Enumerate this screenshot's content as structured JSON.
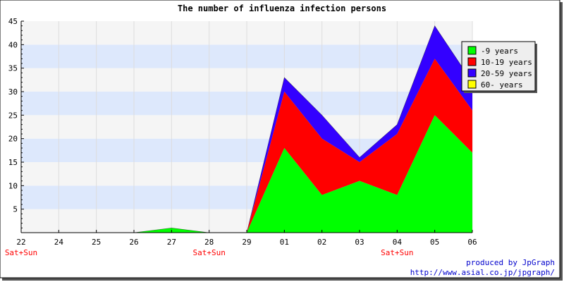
{
  "chart_data": {
    "type": "area",
    "stacked": true,
    "title": "The number of influenza infection persons",
    "x_labels": [
      "22",
      "24",
      "25",
      "26",
      "27",
      "28",
      "29",
      "01",
      "02",
      "03",
      "04",
      "05",
      "06"
    ],
    "weekend_labels": [
      "Sat+Sun",
      "",
      "",
      "",
      "",
      "Sat+Sun",
      "",
      "",
      "",
      "",
      "Sat+Sun",
      "",
      ""
    ],
    "ylim": [
      0,
      45
    ],
    "y_ticks": [
      5,
      10,
      15,
      20,
      25,
      30,
      35,
      40,
      45
    ],
    "series": [
      {
        "name": "-9 years",
        "color": "#00ff00",
        "values": [
          0,
          0,
          0,
          0,
          1,
          0,
          0,
          18,
          8,
          11,
          8,
          25,
          17
        ]
      },
      {
        "name": "10-19 years",
        "color": "#ff0000",
        "values": [
          0,
          0,
          0,
          0,
          0,
          0,
          0,
          12,
          12,
          4,
          13,
          12,
          9
        ]
      },
      {
        "name": "20-59 years",
        "color": "#3300ff",
        "values": [
          0,
          0,
          0,
          0,
          0,
          0,
          0,
          3,
          5,
          1,
          2,
          7,
          6
        ]
      },
      {
        "name": "60- years",
        "color": "#ffff00",
        "values": [
          0,
          0,
          0,
          0,
          0,
          0,
          0,
          0,
          0,
          0,
          0,
          0,
          0
        ]
      }
    ],
    "legend_position": "top-right",
    "grid": true
  },
  "footer": {
    "credit": "produced by JpGraph",
    "url": "http://www.asial.co.jp/jpgraph/"
  },
  "colors": {
    "band_light": "#f5f5f5",
    "band_blue": "#dde8fc",
    "weekend_label": "#ff0000",
    "credit": "#0000cc"
  }
}
